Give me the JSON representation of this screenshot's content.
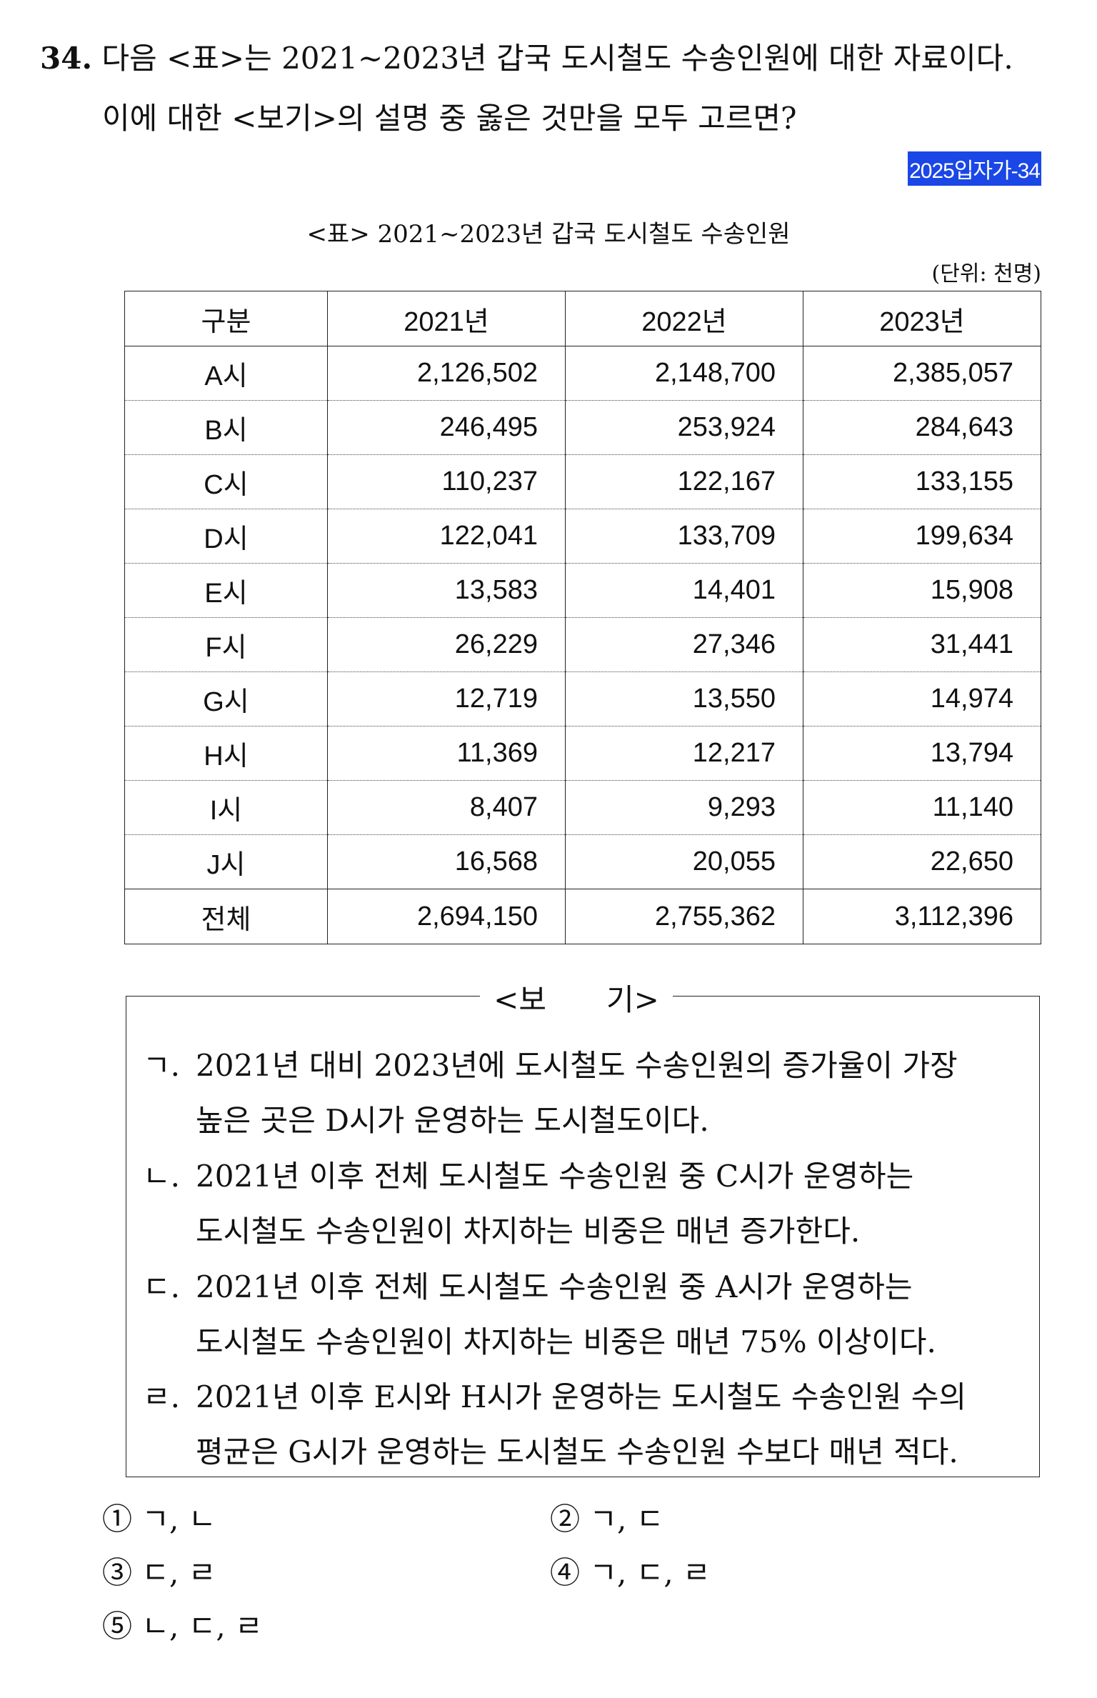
{
  "question": {
    "number": "34.",
    "line1": "다음 <표>는 2021~2023년 갑국 도시철도 수송인원에 대한 자료이다.",
    "line2": "이에 대한 <보기>의 설명 중 옳은 것만을 모두 고르면?",
    "tag": "2025입자가-34"
  },
  "table": {
    "caption": "<표> 2021~2023년 갑국 도시철도 수송인원",
    "unit": "(단위: 천명)",
    "headers": [
      "구분",
      "2021년",
      "2022년",
      "2023년"
    ],
    "rows": [
      [
        "A시",
        "2,126,502",
        "2,148,700",
        "2,385,057"
      ],
      [
        "B시",
        "246,495",
        "253,924",
        "284,643"
      ],
      [
        "C시",
        "110,237",
        "122,167",
        "133,155"
      ],
      [
        "D시",
        "122,041",
        "133,709",
        "199,634"
      ],
      [
        "E시",
        "13,583",
        "14,401",
        "15,908"
      ],
      [
        "F시",
        "26,229",
        "27,346",
        "31,441"
      ],
      [
        "G시",
        "12,719",
        "13,550",
        "14,974"
      ],
      [
        "H시",
        "11,369",
        "12,217",
        "13,794"
      ],
      [
        "I시",
        "8,407",
        "9,293",
        "11,140"
      ],
      [
        "J시",
        "16,568",
        "20,055",
        "22,650"
      ]
    ],
    "total": [
      "전체",
      "2,694,150",
      "2,755,362",
      "3,112,396"
    ]
  },
  "bogi": {
    "title": "<보　　기>",
    "items": [
      {
        "marker": "ㄱ.",
        "line1": "2021년 대비 2023년에 도시철도 수송인원의 증가율이 가장",
        "line2": "높은 곳은 D시가 운영하는 도시철도이다."
      },
      {
        "marker": "ㄴ.",
        "line1": "2021년 이후 전체 도시철도 수송인원 중 C시가 운영하는",
        "line2": "도시철도 수송인원이 차지하는 비중은 매년 증가한다."
      },
      {
        "marker": "ㄷ.",
        "line1": "2021년 이후 전체 도시철도 수송인원 중 A시가 운영하는",
        "line2": "도시철도 수송인원이 차지하는 비중은 매년 75% 이상이다."
      },
      {
        "marker": "ㄹ.",
        "line1": "2021년 이후 E시와 H시가 운영하는 도시철도 수송인원 수의",
        "line2": "평균은 G시가 운영하는 도시철도 수송인원 수보다 매년 적다."
      }
    ]
  },
  "choices": [
    "① ㄱ, ㄴ",
    "② ㄱ, ㄷ",
    "③ ㄷ, ㄹ",
    "④ ㄱ, ㄷ, ㄹ",
    "⑤ ㄴ, ㄷ, ㄹ"
  ]
}
